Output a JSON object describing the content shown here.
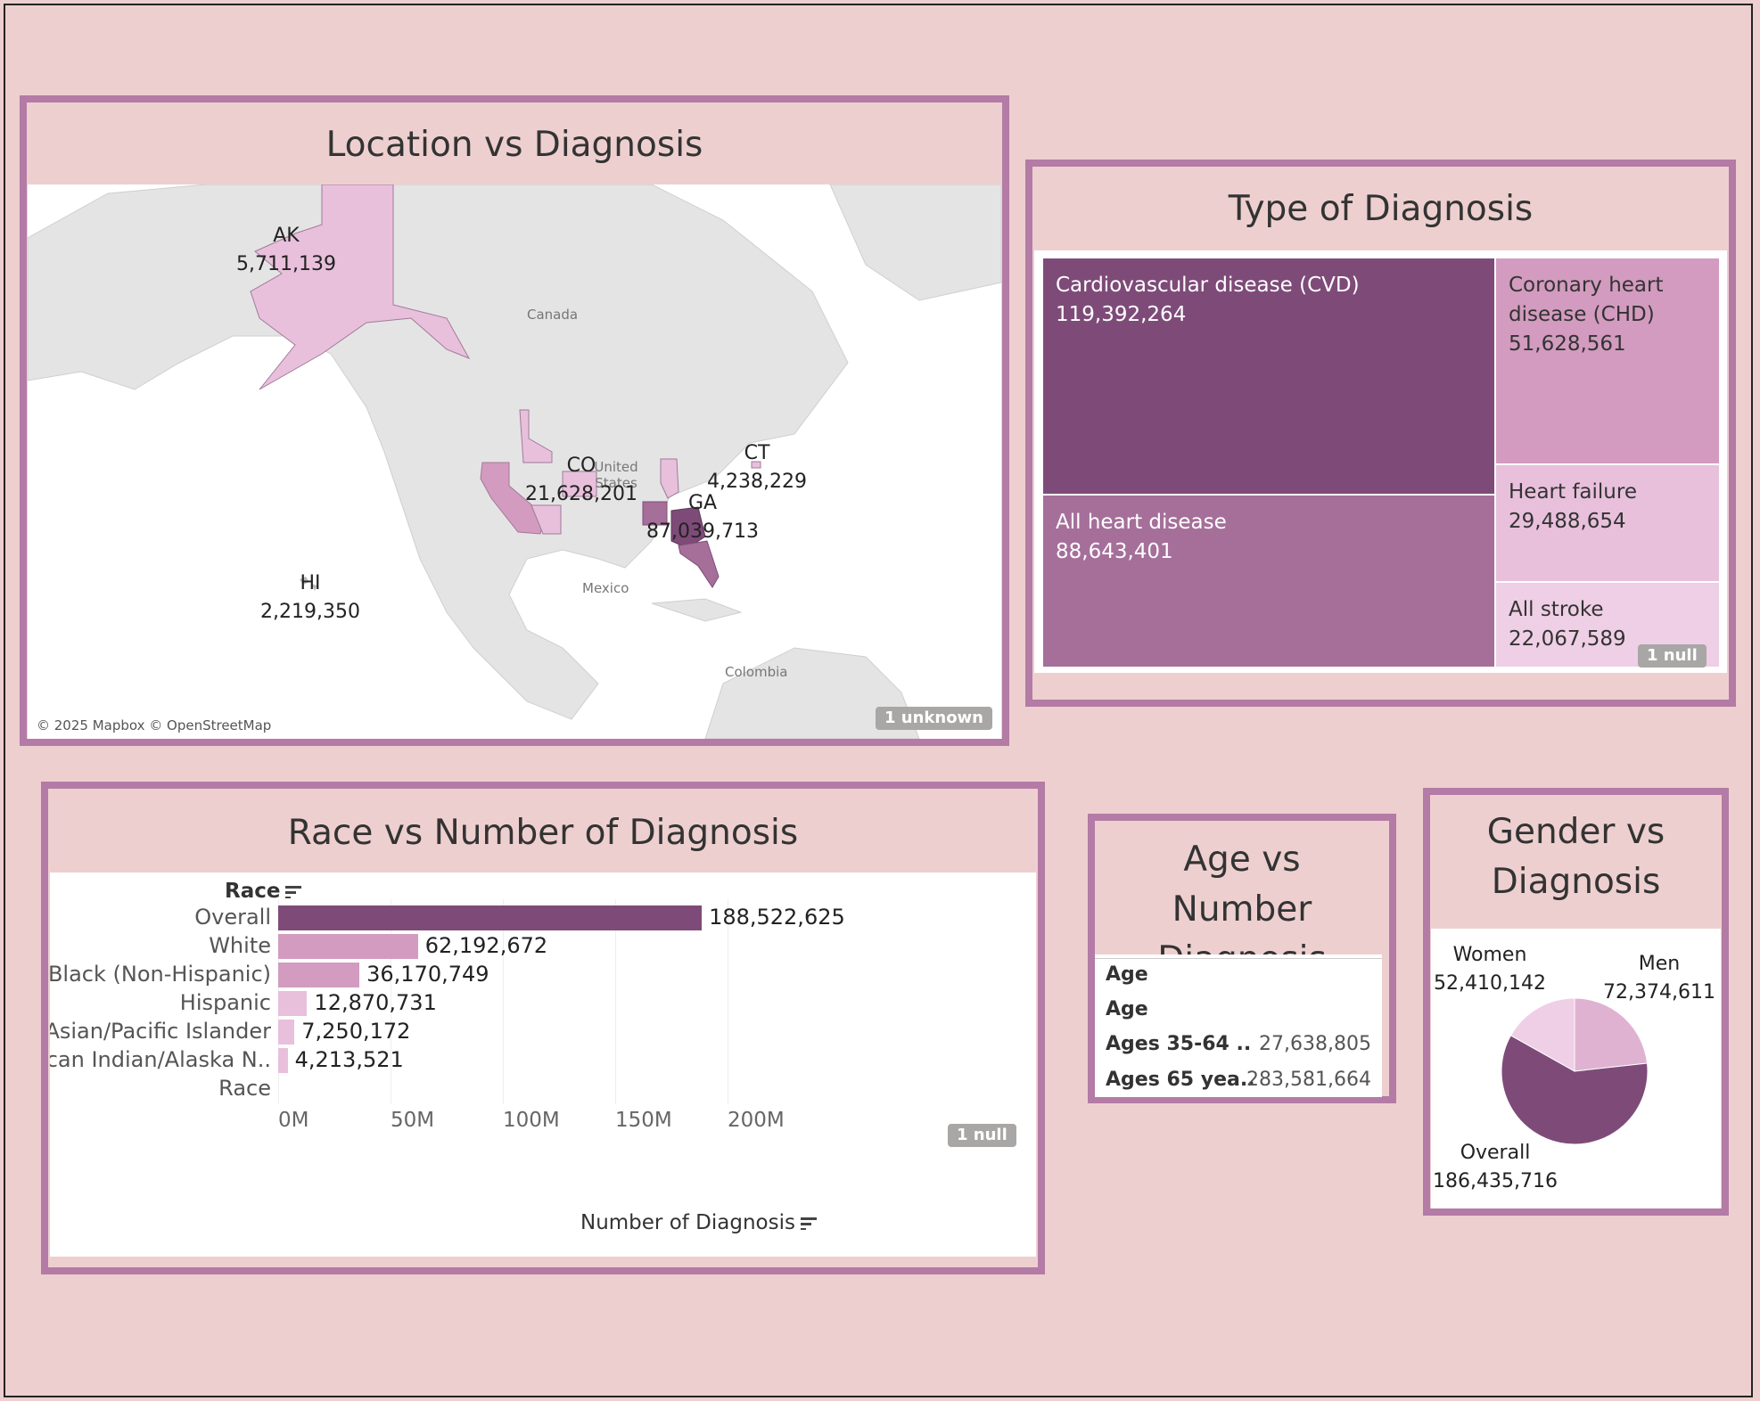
{
  "colors": {
    "dark": "#7e4b79",
    "mid": "#a56f9a",
    "light": "#d39bbf",
    "pale": "#e8c0dc",
    "palest": "#efcfe5",
    "border": "#b37ba5",
    "bg": "#eecfcf"
  },
  "map": {
    "title": "Location vs Diagnosis",
    "country_labels": [
      "Canada",
      "United States",
      "Mexico",
      "Colombia"
    ],
    "attribution": "© 2025 Mapbox © OpenStreetMap",
    "badge": "1 unknown",
    "states": [
      {
        "abbr": "AK",
        "value": "5,711,139"
      },
      {
        "abbr": "CO",
        "value": "21,628,201"
      },
      {
        "abbr": "CT",
        "value": "4,238,229"
      },
      {
        "abbr": "GA",
        "value": "87,039,713"
      },
      {
        "abbr": "HI",
        "value": "2,219,350"
      }
    ]
  },
  "treemap": {
    "title": "Type of Diagnosis",
    "badge": "1 null",
    "items": [
      {
        "name": "Cardiovascular disease (CVD)",
        "value": "119,392,264"
      },
      {
        "name": "All heart disease",
        "value": "88,643,401"
      },
      {
        "name": "Coronary heart disease (CHD)",
        "value": "51,628,561"
      },
      {
        "name": "Heart failure",
        "value": "29,488,654"
      },
      {
        "name": "All stroke",
        "value": "22,067,589"
      }
    ]
  },
  "race": {
    "title": "Race vs Number of Diagnosis",
    "badge": "1 null",
    "y_header": "Race",
    "xlabel": "Number of Diagnosis",
    "ticks": [
      "0M",
      "50M",
      "100M",
      "150M",
      "200M"
    ]
  },
  "age": {
    "title": "Age vs Number Diagnosis",
    "header1": "Age",
    "header2": "Age",
    "rows": [
      {
        "label": "Ages 35-64 ..",
        "value": "27,638,805"
      },
      {
        "label": "Ages 65 yea..",
        "value": "283,581,664"
      }
    ]
  },
  "gender": {
    "title": "Gender vs Diagnosis",
    "slices": [
      {
        "name": "Women",
        "value": "52,410,142"
      },
      {
        "name": "Men",
        "value": "72,374,611"
      },
      {
        "name": "Overall",
        "value": "186,435,716"
      }
    ]
  },
  "chart_data": [
    {
      "type": "bar",
      "title": "Race vs Number of Diagnosis",
      "xlabel": "Number of Diagnosis",
      "ylabel": "Race",
      "categories": [
        "Overall",
        "White",
        "Black (Non-Hispanic)",
        "Hispanic",
        "Asian/Pacific Islander",
        "American Indian/Alaska N..",
        "Race"
      ],
      "values": [
        188522625,
        62192672,
        36170749,
        12870731,
        7250172,
        4213521,
        null
      ],
      "value_labels": [
        "188,522,625",
        "62,192,672",
        "36,170,749",
        "12,870,731",
        "7,250,172",
        "4,213,521",
        ""
      ],
      "xlim": [
        0,
        250000000
      ]
    },
    {
      "type": "pie",
      "title": "Gender vs Diagnosis",
      "categories": [
        "Women",
        "Men",
        "Overall"
      ],
      "values": [
        52410142,
        72374611,
        186435716
      ]
    },
    {
      "type": "table",
      "title": "Age vs Number Diagnosis",
      "categories": [
        "Ages 35-64 ..",
        "Ages 65 yea.."
      ],
      "values": [
        27638805,
        283581664
      ]
    },
    {
      "type": "heatmap",
      "title": "Type of Diagnosis",
      "categories": [
        "Cardiovascular disease (CVD)",
        "All heart disease",
        "Coronary heart disease (CHD)",
        "Heart failure",
        "All stroke"
      ],
      "values": [
        119392264,
        88643401,
        51628561,
        29488654,
        22067589
      ]
    }
  ]
}
